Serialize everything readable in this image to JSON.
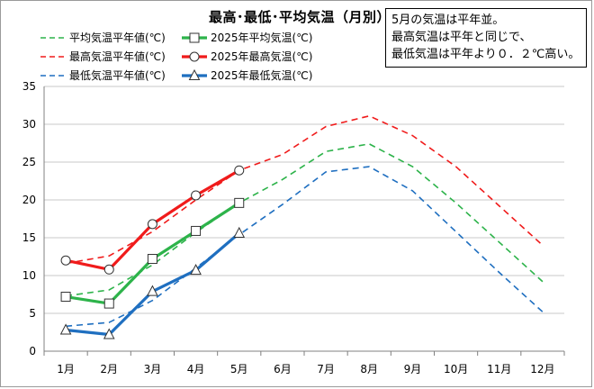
{
  "title": "最高･最低･平均気温（月別）",
  "note": [
    "5月の気温は平年並。",
    "最高気温は平年と同じで、",
    "最低気温は平年より０．２℃高い。"
  ],
  "colors": {
    "avg": "#2db34a",
    "max": "#f01b1b",
    "min": "#1f6fc0",
    "grid": "#c8c8c8",
    "axis": "#808080"
  },
  "chart_data": {
    "type": "line",
    "categories": [
      "1月",
      "2月",
      "3月",
      "4月",
      "5月",
      "6月",
      "7月",
      "8月",
      "9月",
      "10月",
      "11月",
      "12月"
    ],
    "ylim": [
      0,
      35
    ],
    "yticks": [
      0,
      5,
      10,
      15,
      20,
      25,
      30,
      35
    ],
    "grid": true,
    "legend_position": "top-left",
    "series": [
      {
        "name": "平均気温平年値(℃)",
        "key": "avg_normal",
        "color": "#2db34a",
        "style": "dashed",
        "marker": "none",
        "values": [
          7.3,
          8.1,
          11.4,
          15.7,
          19.6,
          22.7,
          26.4,
          27.4,
          24.4,
          19.6,
          14.4,
          9.2
        ]
      },
      {
        "name": "2025年平均気温(℃)",
        "key": "avg_2025",
        "color": "#2db34a",
        "style": "solid",
        "marker": "square",
        "values": [
          7.2,
          6.3,
          12.2,
          15.9,
          19.6,
          null,
          null,
          null,
          null,
          null,
          null,
          null
        ]
      },
      {
        "name": "最高気温平年値(℃)",
        "key": "max_normal",
        "color": "#f01b1b",
        "style": "dashed",
        "marker": "none",
        "values": [
          11.6,
          12.6,
          15.8,
          20.0,
          23.9,
          26.0,
          29.7,
          31.1,
          28.5,
          24.4,
          19.2,
          14.0
        ]
      },
      {
        "name": "2025年最高気温(℃)",
        "key": "max_2025",
        "color": "#f01b1b",
        "style": "solid",
        "marker": "circle",
        "values": [
          12.0,
          10.8,
          16.8,
          20.6,
          23.9,
          null,
          null,
          null,
          null,
          null,
          null,
          null
        ]
      },
      {
        "name": "最低気温平年値(℃)",
        "key": "min_normal",
        "color": "#1f6fc0",
        "style": "dashed",
        "marker": "none",
        "values": [
          3.3,
          3.8,
          6.7,
          11.0,
          15.4,
          19.4,
          23.7,
          24.4,
          21.2,
          15.8,
          10.4,
          5.2
        ]
      },
      {
        "name": "2025年最低気温(℃)",
        "key": "min_2025",
        "color": "#1f6fc0",
        "style": "solid",
        "marker": "triangle",
        "values": [
          2.8,
          2.2,
          7.9,
          10.7,
          15.6,
          null,
          null,
          null,
          null,
          null,
          null,
          null
        ]
      }
    ]
  }
}
